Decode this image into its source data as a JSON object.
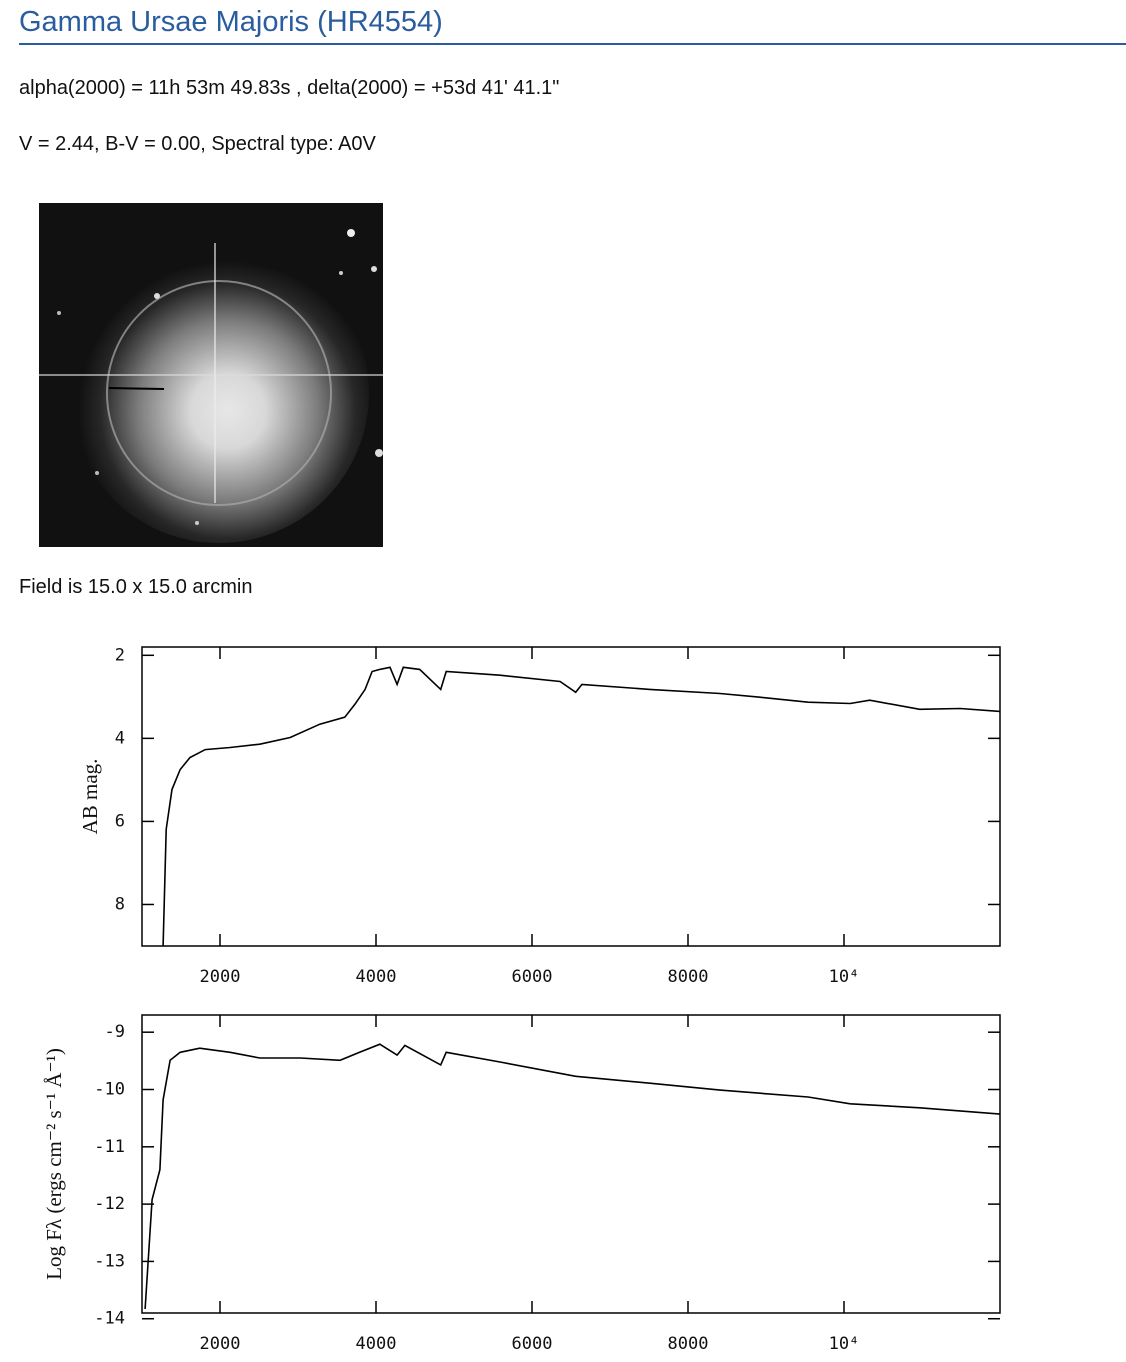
{
  "header": {
    "title": "Gamma Ursae Majoris (HR4554)"
  },
  "info": [
    "alpha(2000) = 11h 53m 49.83s , delta(2000) = +53d 41' 41.1\"",
    "V = 2.44, B-V = 0.00, Spectral type: A0V"
  ],
  "image_caption": "Field is 15.0 x 15.0 arcmin",
  "chart_data": [
    {
      "type": "line",
      "ylabel": "AB mag.",
      "color": "#000000",
      "x": [
        1270,
        1310,
        1385,
        1490,
        1615,
        1810,
        2130,
        2510,
        2900,
        3280,
        3600,
        3730,
        3860,
        3950,
        4050,
        4180,
        4270,
        4350,
        4560,
        4830,
        4900,
        5590,
        6360,
        6560,
        6640,
        7510,
        8410,
        8920,
        9540,
        10080,
        10330,
        10970,
        11490,
        12000
      ],
      "values": [
        8.99,
        6.19,
        5.23,
        4.75,
        4.46,
        4.27,
        4.22,
        4.14,
        3.98,
        3.66,
        3.49,
        3.18,
        2.82,
        2.39,
        2.34,
        2.29,
        2.7,
        2.29,
        2.34,
        2.82,
        2.39,
        2.48,
        2.63,
        2.89,
        2.7,
        2.82,
        2.92,
        3.01,
        3.13,
        3.16,
        3.08,
        3.3,
        3.28,
        3.35
      ],
      "xlim": [
        1000,
        12000
      ],
      "ylim": [
        9,
        1.8
      ],
      "xticks": [
        2000,
        4000,
        6000,
        8000,
        {
          "value": 10000,
          "label": "10⁴"
        }
      ],
      "yticks": [
        2,
        4,
        6,
        8
      ]
    },
    {
      "type": "line",
      "ylabel": "Log Fλ (ergs cm⁻² s⁻¹ Å⁻¹)",
      "color": "#000000",
      "x": [
        1040,
        1130,
        1230,
        1270,
        1360,
        1490,
        1740,
        2130,
        2510,
        3030,
        3540,
        3790,
        4050,
        4270,
        4370,
        4830,
        4900,
        5590,
        6560,
        7510,
        8410,
        9540,
        10080,
        10970,
        12000
      ],
      "values": [
        -13.83,
        -11.92,
        -11.4,
        -10.18,
        -9.49,
        -9.35,
        -9.28,
        -9.35,
        -9.45,
        -9.45,
        -9.49,
        -9.35,
        -9.21,
        -9.4,
        -9.23,
        -9.57,
        -9.35,
        -9.52,
        -9.77,
        -9.89,
        -10.01,
        -10.13,
        -10.25,
        -10.32,
        -10.43
      ],
      "xlim": [
        1000,
        12000
      ],
      "ylim": [
        -13.9,
        -8.7
      ],
      "xticks": [
        2000,
        4000,
        6000,
        8000,
        {
          "value": 10000,
          "label": "10⁴"
        }
      ],
      "yticks": [
        -9,
        -10,
        -11,
        -12,
        -13,
        -14
      ]
    }
  ]
}
